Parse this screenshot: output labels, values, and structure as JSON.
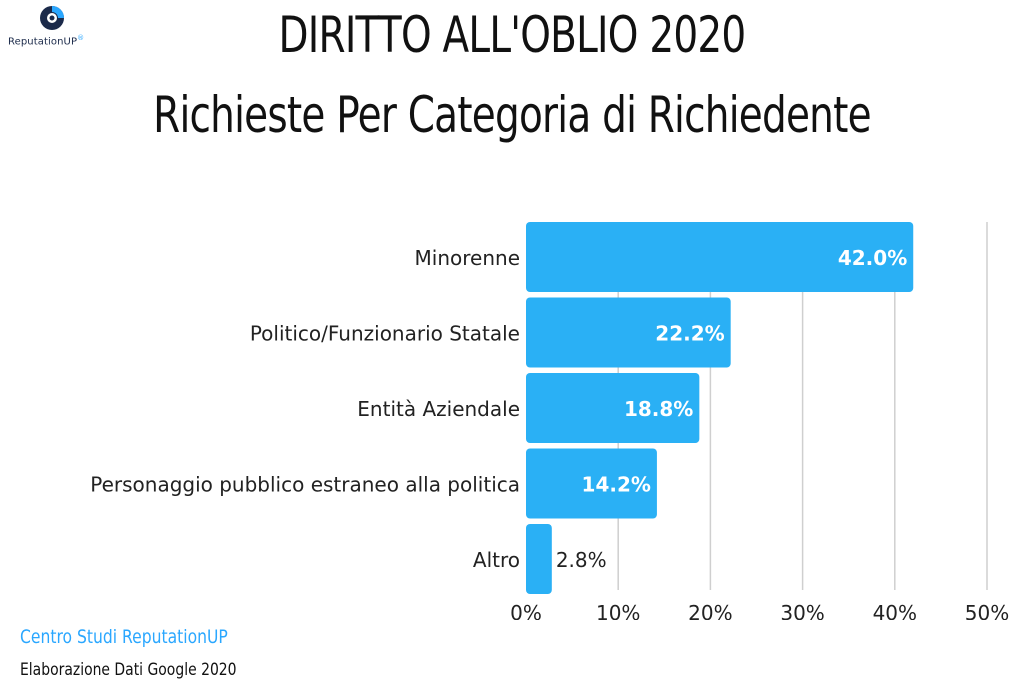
{
  "logo": {
    "text": "ReputationUP",
    "brand_color": "#1b2a4a",
    "accent_color": "#2aa7ff"
  },
  "chart_data": {
    "type": "bar",
    "orientation": "horizontal",
    "title": "DIRITTO ALL'OBLIO 2020",
    "subtitle": "Richieste Per Categoria di Richiedente",
    "categories": [
      "Minorenne",
      "Politico/Funzionario Statale",
      "Entità Aziendale",
      "Personaggio pubblico estraneo alla politica",
      "Altro"
    ],
    "values": [
      42.0,
      22.2,
      18.8,
      14.2,
      2.8
    ],
    "value_labels": [
      "42.0%",
      "22.2%",
      "18.8%",
      "14.2%",
      "2.8%"
    ],
    "xlim": [
      0,
      50
    ],
    "xticks": [
      "0%",
      "10%",
      "20%",
      "30%",
      "40%",
      "50%"
    ],
    "xtick_values": [
      0,
      10,
      20,
      30,
      40,
      50
    ],
    "grid": true,
    "bar_color": "#2ab0f5"
  },
  "footer": {
    "source_line1": "Centro Studi ReputationUP",
    "source_line2": "Elaborazione Dati Google 2020"
  }
}
